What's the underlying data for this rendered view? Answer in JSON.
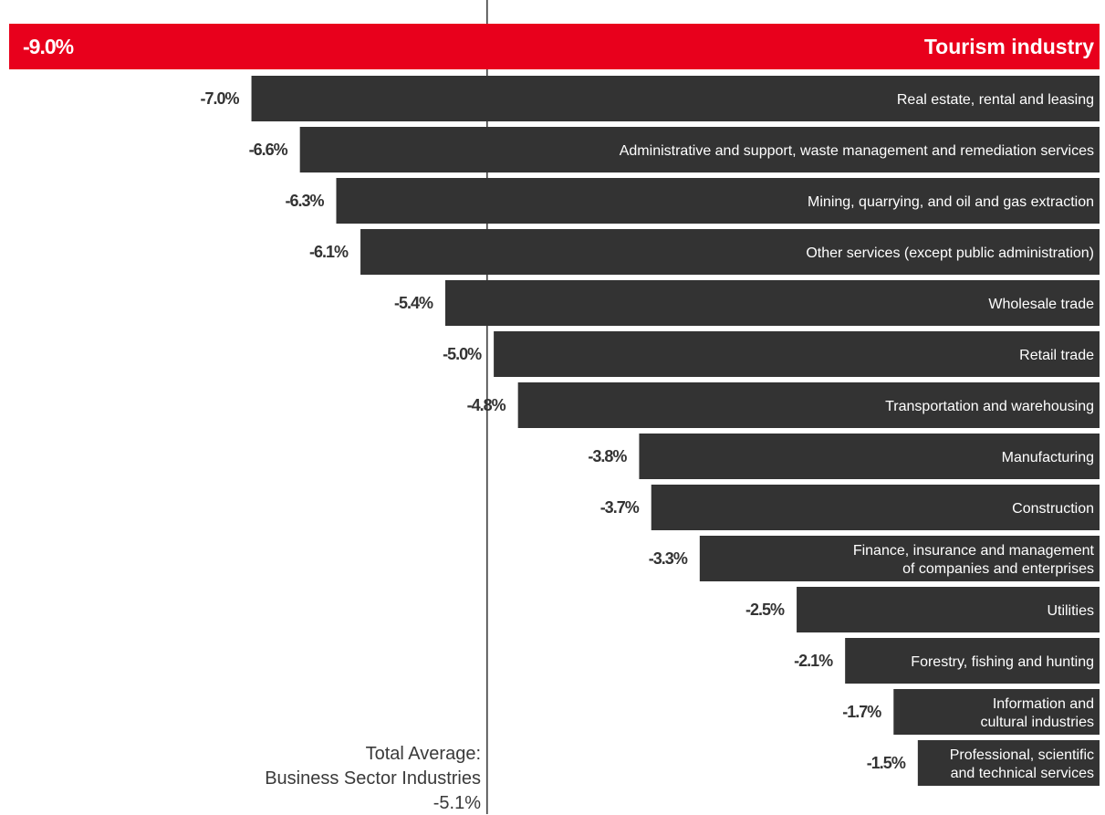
{
  "chart_data": {
    "type": "bar",
    "orientation": "horizontal",
    "categories": [
      "Tourism industry",
      "Real estate, rental and leasing",
      "Administrative and support, waste management and remediation services",
      "Mining, quarrying, and oil and gas extraction",
      "Other services (except public administration)",
      "Wholesale trade",
      "Retail trade",
      "Transportation and warehousing",
      "Manufacturing",
      "Construction",
      "Finance, insurance and management\nof companies and enterprises",
      "Utilities",
      "Forestry, fishing and hunting",
      "Information and\ncultural industries",
      "Professional, scientific\nand technical services"
    ],
    "values": [
      -9.0,
      -7.0,
      -6.6,
      -6.3,
      -6.1,
      -5.4,
      -5.0,
      -4.8,
      -3.8,
      -3.7,
      -3.3,
      -2.5,
      -2.1,
      -1.7,
      -1.5
    ],
    "value_labels": [
      "-9.0%",
      "-7.0%",
      "-6.6%",
      "-6.3%",
      "-6.1%",
      "-5.4%",
      "-5.0%",
      "-4.8%",
      "-3.8%",
      "-3.7%",
      "-3.3%",
      "-2.5%",
      "-2.1%",
      "-1.7%",
      "-1.5%"
    ],
    "highlight_index": 0,
    "reference_line": {
      "value": -5.1,
      "label_line1": "Total Average:",
      "label_line2": "Business Sector Industries",
      "label_line3": "-5.1%"
    },
    "xlim": [
      -9.0,
      0
    ],
    "colors": {
      "highlight": "#e8001c",
      "bar": "#333333",
      "bar_text": "#ffffff",
      "value_label": "#333333",
      "reference_line": "#333333"
    }
  }
}
